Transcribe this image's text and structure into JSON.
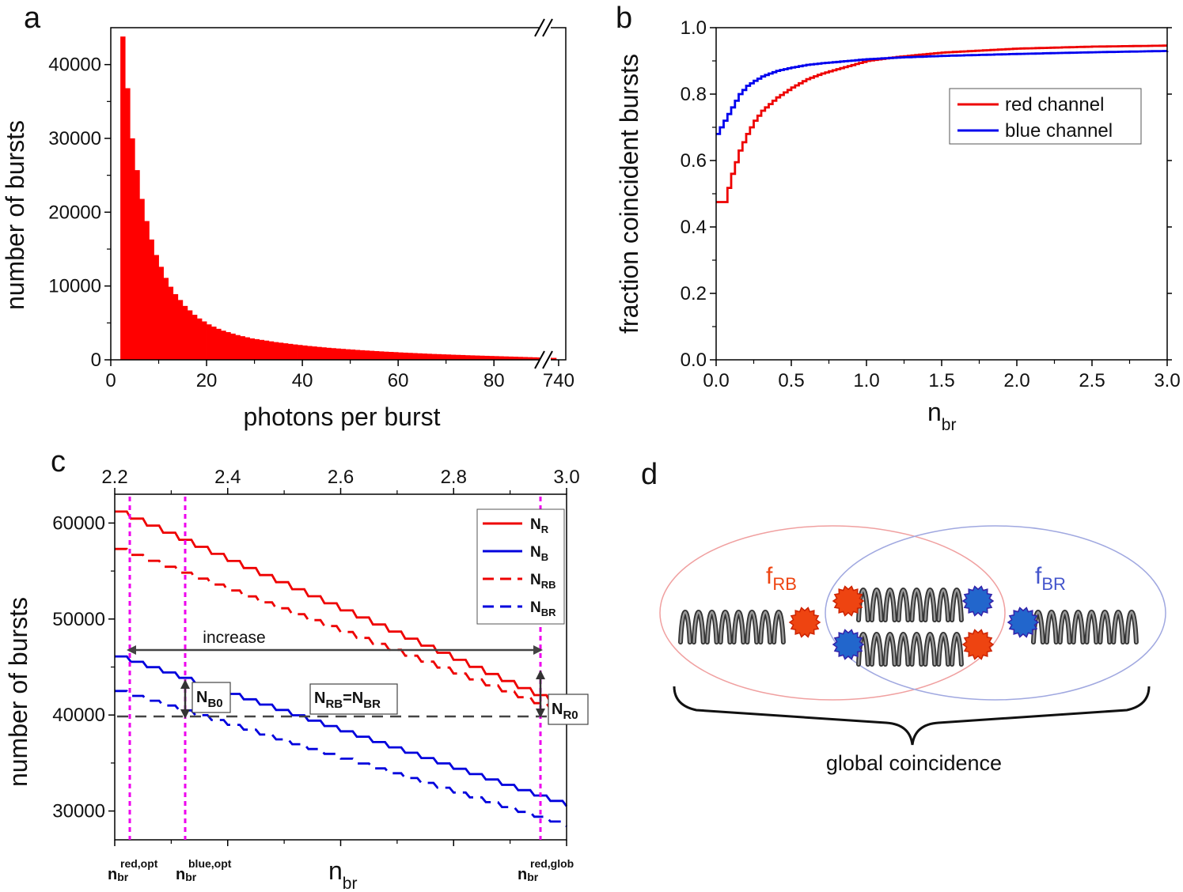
{
  "panels": {
    "a": "a",
    "b": "b",
    "c": "c",
    "d": "d"
  },
  "chart_data": [
    {
      "id": "a",
      "type": "bar",
      "title": "",
      "xlabel": "photons per burst",
      "ylabel": "number of bursts",
      "xlim": [
        0,
        95
      ],
      "ylim": [
        0,
        45000
      ],
      "xticks": [
        "0",
        "20",
        "40",
        "60",
        "80",
        "740"
      ],
      "yticks": [
        "0",
        "10000",
        "20000",
        "30000",
        "40000"
      ],
      "axis_break": "//",
      "bin_start": 2,
      "bin_width": 1,
      "values": [
        43800,
        36800,
        30000,
        25700,
        21800,
        18800,
        16300,
        14200,
        12600,
        11100,
        9900,
        8900,
        8100,
        7300,
        6700,
        6100,
        5600,
        5200,
        4800,
        4500,
        4200,
        3950,
        3750,
        3550,
        3350,
        3200,
        3050,
        2900,
        2800,
        2700,
        2600,
        2500,
        2400,
        2320,
        2240,
        2160,
        2080,
        2010,
        1940,
        1870,
        1810,
        1750,
        1690,
        1630,
        1580,
        1530,
        1480,
        1430,
        1390,
        1340,
        1300,
        1260,
        1220,
        1180,
        1140,
        1100,
        1070,
        1040,
        1000,
        970,
        940,
        910,
        880,
        850,
        820,
        790,
        770,
        740,
        720,
        690,
        670,
        650,
        620,
        600,
        580,
        560,
        540,
        520,
        500,
        480,
        460,
        440,
        420,
        400,
        380,
        360,
        340,
        320,
        300,
        280,
        260
      ]
    },
    {
      "id": "b",
      "type": "line",
      "title": "",
      "xlabel": "n",
      "xlabel_sub": "br",
      "ylabel": "fraction coincident bursts",
      "xlim": [
        0,
        3
      ],
      "ylim": [
        0,
        1
      ],
      "xticks": [
        "0.0",
        "0.5",
        "1.0",
        "1.5",
        "2.0",
        "2.5",
        "3.0"
      ],
      "yticks": [
        "0.0",
        "0.2",
        "0.4",
        "0.6",
        "0.8",
        "1.0"
      ],
      "legend": [
        "red channel",
        "blue channel"
      ],
      "legend_position": "top-right",
      "x": [
        0,
        0.05,
        0.1,
        0.15,
        0.2,
        0.25,
        0.3,
        0.35,
        0.4,
        0.5,
        0.6,
        0.7,
        0.8,
        1.0,
        1.2,
        1.5,
        2.0,
        2.5,
        3.0
      ],
      "series": [
        {
          "name": "red channel",
          "color": "#ee0000",
          "values": [
            0.475,
            0.475,
            0.56,
            0.63,
            0.68,
            0.72,
            0.75,
            0.77,
            0.79,
            0.82,
            0.845,
            0.862,
            0.875,
            0.9,
            0.912,
            0.925,
            0.937,
            0.943,
            0.946
          ]
        },
        {
          "name": "blue channel",
          "color": "#0000ee",
          "values": [
            0.68,
            0.72,
            0.76,
            0.8,
            0.825,
            0.84,
            0.853,
            0.862,
            0.87,
            0.88,
            0.888,
            0.893,
            0.897,
            0.905,
            0.91,
            0.915,
            0.921,
            0.926,
            0.93
          ]
        }
      ]
    },
    {
      "id": "c",
      "type": "line",
      "title": "",
      "xlabel": "n",
      "xlabel_sub": "br",
      "ylabel": "number of bursts",
      "xlim": [
        2.2,
        3.0
      ],
      "ylim": [
        27000,
        63000
      ],
      "xticks": [
        "2.2",
        "2.4",
        "2.6",
        "2.8",
        "3.0"
      ],
      "yticks": [
        "30000",
        "40000",
        "50000",
        "60000"
      ],
      "legend": [
        "N_R",
        "N_B",
        "N_RB",
        "N_BR"
      ],
      "legend_position": "top-right",
      "series": [
        {
          "name": "N_R",
          "color": "#ee0000",
          "dash": "solid",
          "start": 61200,
          "end": 40600
        },
        {
          "name": "N_B",
          "color": "#0000dd",
          "dash": "solid",
          "start": 46100,
          "end": 30500
        },
        {
          "name": "N_RB",
          "color": "#ee0000",
          "dash": "dashed",
          "start": 57300,
          "end": 40000
        },
        {
          "name": "N_BR",
          "color": "#0000dd",
          "dash": "dashed",
          "start": 42500,
          "end": 28400
        }
      ],
      "vlines": [
        2.227,
        2.325,
        2.955
      ],
      "hline": 40000,
      "annotations": {
        "increase": "increase",
        "nrb_eq": "N",
        "nrb_eq_sub1": "RB",
        "nrb_eq_mid": "=N",
        "nrb_eq_sub2": "BR",
        "nb0": "N",
        "nb0_sub": "B0",
        "nr0": "N",
        "nr0_sub": "R0",
        "opt_red_main": "n",
        "opt_red_sub": "br",
        "opt_red_sup": "red,opt",
        "opt_blue_main": "n",
        "opt_blue_sub": "br",
        "opt_blue_sup": "blue,opt",
        "glob_red_main": "n",
        "glob_red_sub": "br",
        "glob_red_sup": "red,glob"
      }
    }
  ],
  "diagram": {
    "f_rb": "f",
    "f_rb_sub": "RB",
    "f_br": "f",
    "f_br_sub": "BR",
    "caption": "global coincidence",
    "red_color": "#ee4411",
    "blue_color": "#2266cc"
  }
}
